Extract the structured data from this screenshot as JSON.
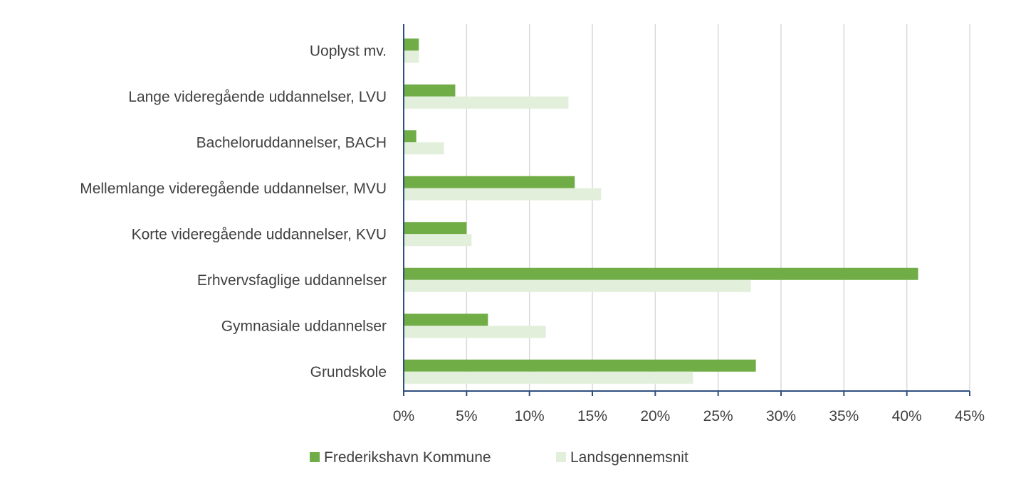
{
  "chart_data": {
    "type": "bar",
    "orientation": "horizontal",
    "title": "",
    "xlabel": "",
    "ylabel": "",
    "categories": [
      "Uoplyst mv.",
      "Lange videregående uddannelser, LVU",
      "Bacheloruddannelser, BACH",
      "Mellemlange videregående uddannelser, MVU",
      "Korte videregående uddannelser, KVU",
      "Erhvervsfaglige uddannelser",
      "Gymnasiale uddannelser",
      "Grundskole"
    ],
    "series": [
      {
        "name": "Frederikshavn Kommune",
        "color": "#70ad47",
        "values": [
          1.2,
          4.1,
          1.0,
          13.6,
          5.0,
          40.9,
          6.7,
          28.0
        ]
      },
      {
        "name": "Landsgennemsnit",
        "color": "#e2efda",
        "values": [
          1.2,
          13.1,
          3.2,
          15.7,
          5.4,
          27.6,
          11.3,
          23.0
        ]
      }
    ],
    "xlim": [
      0,
      45
    ],
    "xticks": [
      0,
      5,
      10,
      15,
      20,
      25,
      30,
      35,
      40,
      45
    ],
    "tick_labels": [
      "0%",
      "5%",
      "10%",
      "15%",
      "20%",
      "25%",
      "30%",
      "35%",
      "40%",
      "45%"
    ],
    "grid": true,
    "legend_position": "bottom"
  }
}
